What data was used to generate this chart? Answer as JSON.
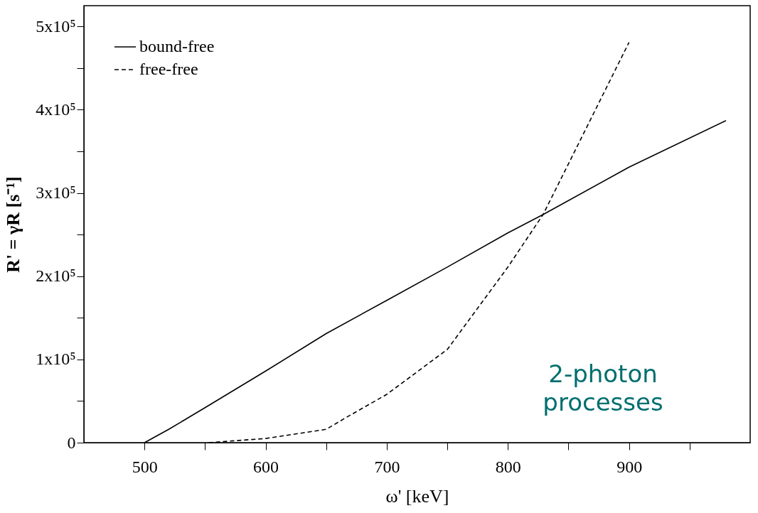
{
  "chart_data": {
    "type": "line",
    "xlabel": "ω' [keV]",
    "ylabel": "R' = γR  [s⁻¹]",
    "xlim": [
      450,
      1000
    ],
    "ylim": [
      0,
      525000
    ],
    "xticks": [
      {
        "value": 500,
        "label": "500"
      },
      {
        "value": 550,
        "label": null
      },
      {
        "value": 600,
        "label": "600"
      },
      {
        "value": 650,
        "label": null
      },
      {
        "value": 700,
        "label": "700"
      },
      {
        "value": 750,
        "label": null
      },
      {
        "value": 800,
        "label": "800"
      },
      {
        "value": 850,
        "label": null
      },
      {
        "value": 900,
        "label": "900"
      },
      {
        "value": 950,
        "label": null
      }
    ],
    "yticks": [
      {
        "value": 0,
        "label": "0"
      },
      {
        "value": 50000,
        "label": null
      },
      {
        "value": 100000,
        "label": "1x10⁵"
      },
      {
        "value": 150000,
        "label": null
      },
      {
        "value": 200000,
        "label": "2x10⁵"
      },
      {
        "value": 250000,
        "label": null
      },
      {
        "value": 300000,
        "label": "3x10⁵"
      },
      {
        "value": 350000,
        "label": null
      },
      {
        "value": 400000,
        "label": "4x10⁵"
      },
      {
        "value": 450000,
        "label": null
      },
      {
        "value": 500000,
        "label": "5x10⁵"
      }
    ],
    "grid": false,
    "legend": "top left",
    "marker": "none",
    "series": [
      {
        "name": "bound-free",
        "color": "#000000",
        "line_style": "solid",
        "x": [
          500,
          520,
          550,
          600,
          650,
          700,
          750,
          800,
          829,
          900,
          980
        ],
        "values": [
          0,
          16000,
          42000,
          86000,
          131000,
          171000,
          211000,
          252000,
          274000,
          331000,
          387000
        ]
      },
      {
        "name": "free-free",
        "color": "#000000",
        "line_style": "dashed",
        "x": [
          553,
          600,
          650,
          665,
          700,
          750,
          800,
          829,
          850,
          875,
          900
        ],
        "values": [
          0,
          5000,
          16000,
          29000,
          58000,
          112000,
          211000,
          274000,
          335000,
          408000,
          481000
        ]
      }
    ],
    "annotations": [
      "2-photon processes"
    ]
  }
}
